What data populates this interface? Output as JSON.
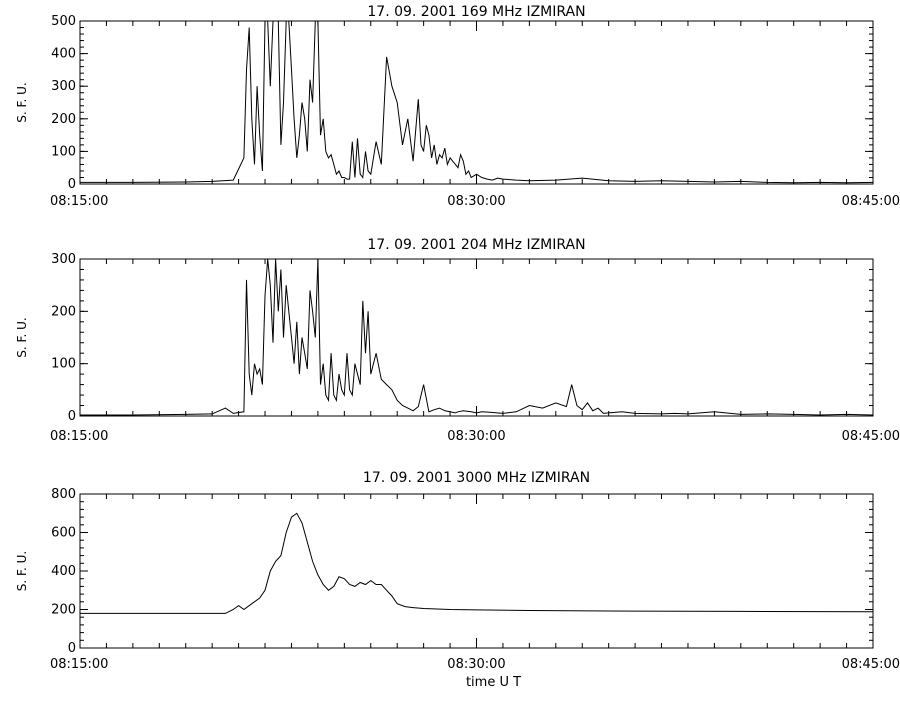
{
  "chart_data": [
    {
      "type": "line",
      "title": "17.  09.  2001   169 MHz   IZMIRAN",
      "xlabel": "",
      "ylabel": "S. F. U.",
      "x_tick_labels": [
        "08:15:00",
        "08:30:00",
        "08:45:00"
      ],
      "xlim_minutes": [
        0,
        30
      ],
      "ylim": [
        0,
        500
      ],
      "y_ticks": [
        0,
        100,
        200,
        300,
        400,
        500
      ],
      "series": [
        {
          "x": [
            0,
            2,
            4,
            5,
            5.8,
            6.2,
            6.3,
            6.4,
            6.5,
            6.6,
            6.7,
            6.8,
            6.9,
            7.0,
            7.1,
            7.2,
            7.3,
            7.4,
            7.5,
            7.6,
            7.7,
            7.8,
            7.9,
            8.0,
            8.1,
            8.2,
            8.3,
            8.4,
            8.5,
            8.6,
            8.7,
            8.8,
            8.9,
            9.0,
            9.1,
            9.2,
            9.3,
            9.4,
            9.5,
            9.6,
            9.7,
            9.8,
            9.9,
            10.0,
            10.1,
            10.2,
            10.3,
            10.4,
            10.5,
            10.6,
            10.7,
            10.8,
            10.9,
            11.0,
            11.2,
            11.4,
            11.6,
            11.8,
            12.0,
            12.2,
            12.4,
            12.6,
            12.8,
            12.9,
            13.0,
            13.1,
            13.2,
            13.3,
            13.4,
            13.5,
            13.6,
            13.7,
            13.8,
            13.9,
            14.0,
            14.1,
            14.2,
            14.3,
            14.4,
            14.5,
            14.6,
            14.7,
            14.8,
            14.9,
            15.0,
            15.2,
            15.4,
            15.6,
            15.8,
            16.0,
            16.5,
            17,
            18,
            19,
            20,
            21,
            22,
            23,
            24,
            25,
            26,
            27,
            28,
            29,
            30
          ],
          "values": [
            5,
            5,
            6,
            8,
            12,
            80,
            350,
            480,
            200,
            60,
            300,
            150,
            40,
            500,
            500,
            300,
            500,
            500,
            500,
            120,
            250,
            500,
            500,
            350,
            200,
            80,
            150,
            250,
            200,
            100,
            320,
            250,
            500,
            500,
            150,
            200,
            100,
            80,
            90,
            60,
            30,
            40,
            20,
            20,
            15,
            15,
            130,
            20,
            140,
            30,
            20,
            100,
            40,
            30,
            130,
            60,
            390,
            300,
            250,
            120,
            200,
            70,
            260,
            120,
            100,
            180,
            150,
            80,
            120,
            60,
            90,
            80,
            110,
            60,
            80,
            70,
            60,
            50,
            90,
            70,
            30,
            40,
            20,
            25,
            30,
            20,
            15,
            12,
            18,
            15,
            12,
            10,
            12,
            18,
            10,
            8,
            10,
            8,
            6,
            8,
            5,
            4,
            5,
            4,
            5
          ]
        }
      ]
    },
    {
      "type": "line",
      "title": "17.  09.  2001   204 MHz   IZMIRAN",
      "xlabel": "",
      "ylabel": "S. F. U.",
      "x_tick_labels": [
        "08:15:00",
        "08:30:00",
        "08:45:00"
      ],
      "xlim_minutes": [
        0,
        30
      ],
      "ylim": [
        0,
        300
      ],
      "y_ticks": [
        0,
        100,
        200,
        300
      ],
      "series": [
        {
          "x": [
            0,
            2,
            4,
            5,
            5.5,
            5.8,
            6.2,
            6.3,
            6.4,
            6.5,
            6.6,
            6.7,
            6.8,
            6.9,
            7.0,
            7.1,
            7.2,
            7.3,
            7.4,
            7.5,
            7.6,
            7.7,
            7.8,
            7.9,
            8.0,
            8.1,
            8.2,
            8.3,
            8.4,
            8.5,
            8.6,
            8.7,
            8.8,
            8.9,
            9.0,
            9.1,
            9.2,
            9.3,
            9.4,
            9.5,
            9.6,
            9.7,
            9.8,
            9.9,
            10.0,
            10.1,
            10.2,
            10.3,
            10.4,
            10.5,
            10.6,
            10.7,
            10.8,
            10.9,
            11.0,
            11.2,
            11.4,
            11.6,
            11.8,
            12.0,
            12.2,
            12.4,
            12.6,
            12.8,
            13.0,
            13.2,
            13.4,
            13.6,
            13.8,
            14.0,
            14.2,
            14.3,
            14.5,
            14.8,
            15.0,
            15.2,
            15.5,
            16,
            16.5,
            17,
            17.5,
            18.0,
            18.4,
            18.6,
            18.8,
            19.0,
            19.2,
            19.4,
            19.6,
            19.8,
            20.0,
            20.5,
            21,
            22,
            22.5,
            23,
            24,
            25,
            26,
            27,
            28,
            29,
            30
          ],
          "values": [
            2,
            2,
            3,
            4,
            15,
            5,
            8,
            260,
            80,
            40,
            100,
            80,
            90,
            60,
            230,
            300,
            250,
            140,
            300,
            200,
            280,
            150,
            250,
            200,
            150,
            100,
            180,
            80,
            150,
            120,
            90,
            240,
            200,
            150,
            300,
            60,
            100,
            40,
            30,
            120,
            40,
            30,
            80,
            50,
            40,
            120,
            50,
            40,
            100,
            80,
            60,
            220,
            120,
            200,
            80,
            120,
            70,
            60,
            50,
            30,
            20,
            15,
            10,
            18,
            60,
            8,
            12,
            15,
            10,
            8,
            6,
            8,
            10,
            8,
            6,
            8,
            7,
            5,
            8,
            20,
            15,
            25,
            18,
            60,
            20,
            12,
            25,
            10,
            15,
            5,
            6,
            8,
            5,
            4,
            5,
            4,
            8,
            3,
            4,
            3,
            2,
            3,
            2
          ]
        }
      ]
    },
    {
      "type": "line",
      "title": "17.  09.  2001   3000 MHz   IZMIRAN",
      "xlabel": "time   U T",
      "ylabel": "S. F. U.",
      "x_tick_labels": [
        "08:15:00",
        "08:30:00",
        "08:45:00"
      ],
      "xlim_minutes": [
        0,
        30
      ],
      "ylim": [
        0,
        800
      ],
      "y_ticks": [
        0,
        200,
        400,
        600,
        800
      ],
      "series": [
        {
          "x": [
            0,
            2,
            4,
            5.5,
            5.8,
            6.0,
            6.2,
            6.5,
            6.8,
            7.0,
            7.2,
            7.4,
            7.6,
            7.8,
            8.0,
            8.2,
            8.4,
            8.6,
            8.8,
            9.0,
            9.2,
            9.4,
            9.6,
            9.8,
            10.0,
            10.2,
            10.4,
            10.6,
            10.8,
            11.0,
            11.2,
            11.4,
            11.6,
            11.8,
            12.0,
            12.3,
            12.6,
            13.0,
            14.0,
            15.0,
            17.0,
            20.0,
            25.0,
            30.0
          ],
          "values": [
            180,
            180,
            180,
            180,
            200,
            220,
            200,
            230,
            260,
            300,
            400,
            450,
            480,
            600,
            680,
            700,
            650,
            550,
            450,
            380,
            330,
            300,
            320,
            370,
            360,
            330,
            320,
            340,
            330,
            350,
            330,
            330,
            300,
            270,
            230,
            215,
            210,
            205,
            200,
            198,
            195,
            192,
            190,
            188
          ]
        }
      ]
    }
  ]
}
